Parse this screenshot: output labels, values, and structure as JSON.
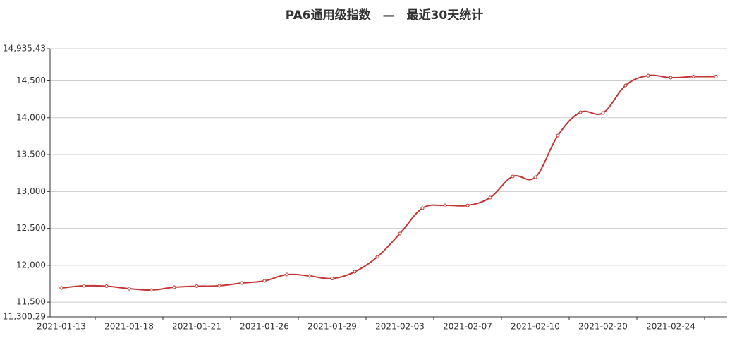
{
  "chart_data": {
    "type": "line",
    "title": "PA6通用级指数　—　最近30天统计",
    "categories": [
      "2021-01-13",
      null,
      null,
      "2021-01-18",
      null,
      null,
      "2021-01-21",
      null,
      null,
      "2021-01-26",
      null,
      null,
      "2021-01-29",
      null,
      null,
      "2021-02-03",
      null,
      null,
      "2021-02-07",
      null,
      null,
      "2021-02-10",
      null,
      null,
      "2021-02-20",
      null,
      null,
      "2021-02-24",
      null,
      null
    ],
    "series": [
      {
        "name": "PA6通用级指数",
        "color": "#c23531",
        "values": [
          11692,
          11721,
          11716,
          11683,
          11664,
          11702,
          11716,
          11721,
          11759,
          11788,
          11874,
          11855,
          11821,
          11912,
          12113,
          12429,
          12773,
          12811,
          12811,
          12917,
          13204,
          13194,
          13759,
          14074,
          14065,
          14438,
          14571,
          14543,
          14557,
          14557
        ]
      }
    ],
    "ylim": [
      11300.29,
      14935.43
    ],
    "yticks": [
      {
        "value": 11300.29,
        "label": "11,300.29"
      },
      {
        "value": 11500,
        "label": "11,500"
      },
      {
        "value": 12000,
        "label": "12,000"
      },
      {
        "value": 12500,
        "label": "12,500"
      },
      {
        "value": 13000,
        "label": "13,000"
      },
      {
        "value": 13500,
        "label": "13,500"
      },
      {
        "value": 14000,
        "label": "14,000"
      },
      {
        "value": 14500,
        "label": "14,500"
      },
      {
        "value": 14935.43,
        "label": "14,935.43"
      }
    ],
    "grid": true
  }
}
